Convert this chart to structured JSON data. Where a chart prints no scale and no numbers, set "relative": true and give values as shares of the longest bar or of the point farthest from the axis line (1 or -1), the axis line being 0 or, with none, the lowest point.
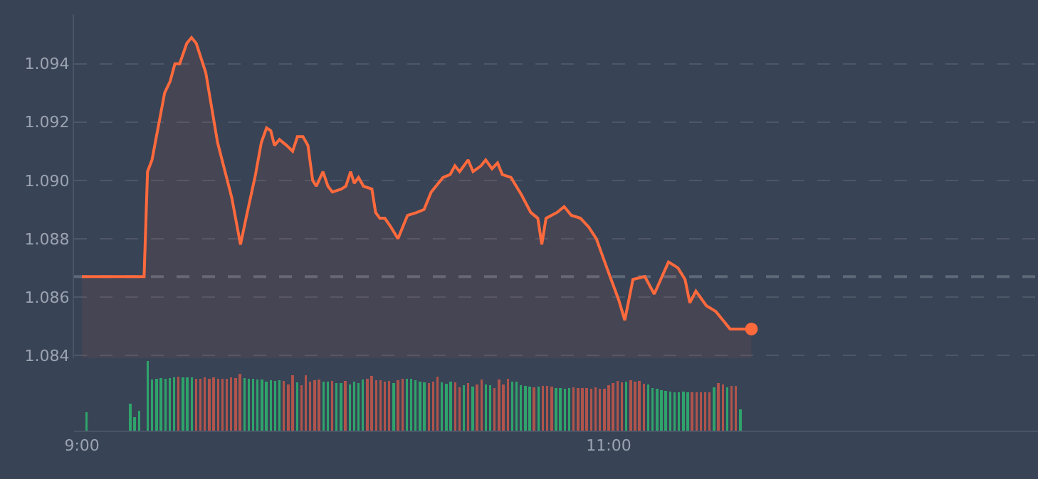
{
  "chart_data": [
    {
      "type": "line",
      "xlim": [
        8.97,
        12.63
      ],
      "ylim": [
        1.0839,
        1.0957
      ],
      "yticks": [
        {
          "value": 1.084,
          "label": "1.084"
        },
        {
          "value": 1.086,
          "label": "1.086"
        },
        {
          "value": 1.088,
          "label": "1.088"
        },
        {
          "value": 1.09,
          "label": "1.090"
        },
        {
          "value": 1.092,
          "label": "1.092"
        },
        {
          "value": 1.094,
          "label": "1.094"
        }
      ],
      "grid": "y",
      "tick_labels": "y",
      "ref_lines": [
        {
          "axis": "y",
          "value": 1.0867,
          "color": "#5e6878",
          "line_style": "dashed"
        }
      ],
      "series": [
        {
          "type": "area",
          "color": "#ff6a3d",
          "line_style": "solid",
          "x": [
            9.0,
            9.236,
            9.249,
            9.266,
            9.314,
            9.335,
            9.353,
            9.371,
            9.398,
            9.416,
            9.434,
            9.47,
            9.515,
            9.569,
            9.602,
            9.623,
            9.659,
            9.681,
            9.701,
            9.717,
            9.731,
            9.75,
            9.777,
            9.8,
            9.818,
            9.839,
            9.858,
            9.876,
            9.89,
            9.915,
            9.934,
            9.951,
            9.984,
            10.002,
            10.02,
            10.034,
            10.05,
            10.069,
            10.101,
            10.115,
            10.131,
            10.15,
            10.173,
            10.2,
            10.236,
            10.272,
            10.299,
            10.326,
            10.371,
            10.398,
            10.416,
            10.434,
            10.466,
            10.485,
            10.515,
            10.533,
            10.557,
            10.578,
            10.596,
            10.629,
            10.669,
            10.704,
            10.731,
            10.746,
            10.762,
            10.804,
            10.831,
            10.858,
            10.893,
            10.924,
            10.953,
            10.993,
            11.038,
            11.061,
            11.092,
            11.137,
            11.173,
            11.227,
            11.263,
            11.29,
            11.308,
            11.331,
            11.371,
            11.407,
            11.461,
            11.497,
            11.542
          ],
          "values": [
            1.0867,
            1.0867,
            1.0903,
            1.0907,
            1.093,
            1.0934,
            1.094,
            1.094,
            1.0947,
            1.0949,
            1.0947,
            1.0937,
            1.0913,
            1.0894,
            1.0878,
            1.0887,
            1.0902,
            1.0913,
            1.0918,
            1.0917,
            1.0912,
            1.0914,
            1.0912,
            1.091,
            1.0915,
            1.0915,
            1.0912,
            1.09,
            1.0898,
            1.0903,
            1.0898,
            1.0896,
            1.0897,
            1.0898,
            1.0903,
            1.0899,
            1.0901,
            1.0898,
            1.0897,
            1.0889,
            1.0887,
            1.0887,
            1.0884,
            1.088,
            1.0888,
            1.0889,
            1.089,
            1.0896,
            1.0901,
            1.0902,
            1.0905,
            1.0903,
            1.0907,
            1.0903,
            1.0905,
            1.0907,
            1.0904,
            1.0906,
            1.0902,
            1.0901,
            1.0895,
            1.0889,
            1.0887,
            1.0878,
            1.0887,
            1.0889,
            1.0891,
            1.0888,
            1.0887,
            1.0884,
            1.088,
            1.087,
            1.0859,
            1.0852,
            1.0866,
            1.0867,
            1.0861,
            1.0872,
            1.087,
            1.0866,
            1.0858,
            1.0862,
            1.0857,
            1.0855,
            1.0849,
            1.0849,
            1.0849
          ]
        },
        {
          "type": "scatter",
          "color": "#ff6a3d",
          "marker": "circle",
          "x": [
            11.542
          ],
          "values": [
            1.0849
          ]
        }
      ]
    },
    {
      "type": "bar",
      "relative": true,
      "xlim": [
        8.97,
        12.63
      ],
      "xticks": [
        {
          "value": 9,
          "label": "9:00"
        },
        {
          "value": 11,
          "label": "11:00"
        }
      ],
      "tick_labels": "x",
      "x": [
        9.0167,
        9.1833,
        9.2,
        9.2167,
        9.25,
        9.2667,
        9.2833,
        9.3,
        9.3167,
        9.3333,
        9.35,
        9.3667,
        9.3833,
        9.4,
        9.4167,
        9.4333,
        9.45,
        9.4667,
        9.4833,
        9.5,
        9.5167,
        9.5333,
        9.55,
        9.5667,
        9.5833,
        9.6,
        9.6167,
        9.6333,
        9.65,
        9.6667,
        9.6833,
        9.7,
        9.7167,
        9.7333,
        9.75,
        9.7667,
        9.7833,
        9.8,
        9.8167,
        9.8333,
        9.85,
        9.8667,
        9.8833,
        9.9,
        9.9167,
        9.9333,
        9.95,
        9.9667,
        9.9833,
        10.0,
        10.0167,
        10.0333,
        10.05,
        10.0667,
        10.0833,
        10.1,
        10.1167,
        10.1333,
        10.15,
        10.1667,
        10.1833,
        10.2,
        10.2167,
        10.2333,
        10.25,
        10.2667,
        10.2833,
        10.3,
        10.3167,
        10.3333,
        10.35,
        10.3667,
        10.3833,
        10.4,
        10.4167,
        10.4333,
        10.45,
        10.4667,
        10.4833,
        10.5,
        10.5167,
        10.5333,
        10.55,
        10.5667,
        10.5833,
        10.6,
        10.6167,
        10.6333,
        10.65,
        10.6667,
        10.6833,
        10.7,
        10.7167,
        10.7333,
        10.75,
        10.7667,
        10.7833,
        10.8,
        10.8167,
        10.8333,
        10.85,
        10.8667,
        10.8833,
        10.9,
        10.9167,
        10.9333,
        10.95,
        10.9667,
        10.9833,
        11.0,
        11.0167,
        11.0333,
        11.05,
        11.0667,
        11.0833,
        11.1,
        11.1167,
        11.1333,
        11.15,
        11.1667,
        11.1833,
        11.2,
        11.2167,
        11.2333,
        11.25,
        11.2667,
        11.2833,
        11.3,
        11.3167,
        11.3333,
        11.35,
        11.3667,
        11.3833,
        11.4,
        11.4167,
        11.4333,
        11.45,
        11.4667,
        11.4833,
        11.5
      ],
      "values": [
        0.27,
        0.39,
        0.19,
        0.29,
        1.0,
        0.73,
        0.74,
        0.76,
        0.74,
        0.76,
        0.77,
        0.78,
        0.77,
        0.77,
        0.77,
        0.74,
        0.75,
        0.77,
        0.75,
        0.77,
        0.75,
        0.75,
        0.75,
        0.77,
        0.76,
        0.82,
        0.76,
        0.75,
        0.74,
        0.73,
        0.73,
        0.7,
        0.72,
        0.71,
        0.72,
        0.71,
        0.66,
        0.8,
        0.69,
        0.65,
        0.8,
        0.7,
        0.72,
        0.73,
        0.7,
        0.7,
        0.71,
        0.68,
        0.68,
        0.71,
        0.66,
        0.7,
        0.68,
        0.73,
        0.74,
        0.79,
        0.72,
        0.72,
        0.7,
        0.71,
        0.68,
        0.72,
        0.75,
        0.75,
        0.74,
        0.72,
        0.7,
        0.69,
        0.68,
        0.7,
        0.78,
        0.69,
        0.67,
        0.7,
        0.69,
        0.62,
        0.65,
        0.68,
        0.63,
        0.66,
        0.73,
        0.66,
        0.65,
        0.61,
        0.73,
        0.66,
        0.75,
        0.7,
        0.7,
        0.65,
        0.64,
        0.63,
        0.62,
        0.63,
        0.64,
        0.64,
        0.63,
        0.61,
        0.61,
        0.6,
        0.61,
        0.62,
        0.61,
        0.61,
        0.61,
        0.6,
        0.62,
        0.6,
        0.6,
        0.65,
        0.68,
        0.71,
        0.69,
        0.7,
        0.72,
        0.7,
        0.71,
        0.67,
        0.66,
        0.61,
        0.6,
        0.58,
        0.57,
        0.56,
        0.55,
        0.55,
        0.56,
        0.55,
        0.55,
        0.55,
        0.55,
        0.55,
        0.55,
        0.62,
        0.68,
        0.66,
        0.62,
        0.64,
        0.64,
        0.31
      ],
      "colors": [
        "#2fa36b",
        "#2fa36b",
        "#2fa36b",
        "#2fa36b",
        "#2fa36b",
        "#2fa36b",
        "#2fa36b",
        "#2fa36b",
        "#2fa36b",
        "#2fa36b",
        "#2fa36b",
        "#b0544c",
        "#2fa36b",
        "#2fa36b",
        "#2fa36b",
        "#b0544c",
        "#b0544c",
        "#b0544c",
        "#b0544c",
        "#b0544c",
        "#b0544c",
        "#b0544c",
        "#b0544c",
        "#b0544c",
        "#b0544c",
        "#b0544c",
        "#2fa36b",
        "#2fa36b",
        "#2fa36b",
        "#2fa36b",
        "#2fa36b",
        "#2fa36b",
        "#2fa36b",
        "#2fa36b",
        "#2fa36b",
        "#b0544c",
        "#b0544c",
        "#b0544c",
        "#2fa36b",
        "#b0544c",
        "#b0544c",
        "#b0544c",
        "#b0544c",
        "#b0544c",
        "#2fa36b",
        "#2fa36b",
        "#b0544c",
        "#2fa36b",
        "#2fa36b",
        "#b0544c",
        "#2fa36b",
        "#2fa36b",
        "#2fa36b",
        "#2fa36b",
        "#b0544c",
        "#b0544c",
        "#b0544c",
        "#b0544c",
        "#b0544c",
        "#b0544c",
        "#2fa36b",
        "#b0544c",
        "#b0544c",
        "#2fa36b",
        "#2fa36b",
        "#2fa36b",
        "#2fa36b",
        "#2fa36b",
        "#b0544c",
        "#b0544c",
        "#b0544c",
        "#2fa36b",
        "#2fa36b",
        "#2fa36b",
        "#b0544c",
        "#b0544c",
        "#2fa36b",
        "#b0544c",
        "#2fa36b",
        "#b0544c",
        "#b0544c",
        "#2fa36b",
        "#2fa36b",
        "#b0544c",
        "#b0544c",
        "#b0544c",
        "#b0544c",
        "#2fa36b",
        "#2fa36b",
        "#2fa36b",
        "#2fa36b",
        "#2fa36b",
        "#b0544c",
        "#2fa36b",
        "#b0544c",
        "#b0544c",
        "#b0544c",
        "#2fa36b",
        "#2fa36b",
        "#2fa36b",
        "#2fa36b",
        "#b0544c",
        "#b0544c",
        "#b0544c",
        "#b0544c",
        "#b0544c",
        "#b0544c",
        "#b0544c",
        "#b0544c",
        "#b0544c",
        "#b0544c",
        "#b0544c",
        "#b0544c",
        "#2fa36b",
        "#b0544c",
        "#b0544c",
        "#b0544c",
        "#b0544c",
        "#2fa36b",
        "#2fa36b",
        "#2fa36b",
        "#2fa36b",
        "#2fa36b",
        "#2fa36b",
        "#2fa36b",
        "#2fa36b",
        "#2fa36b",
        "#2fa36b",
        "#b0544c",
        "#b0544c",
        "#b0544c",
        "#b0544c",
        "#b0544c",
        "#2fa36b",
        "#b0544c",
        "#b0544c",
        "#2fa36b",
        "#b0544c",
        "#b0544c",
        "#2fa36b"
      ]
    }
  ]
}
